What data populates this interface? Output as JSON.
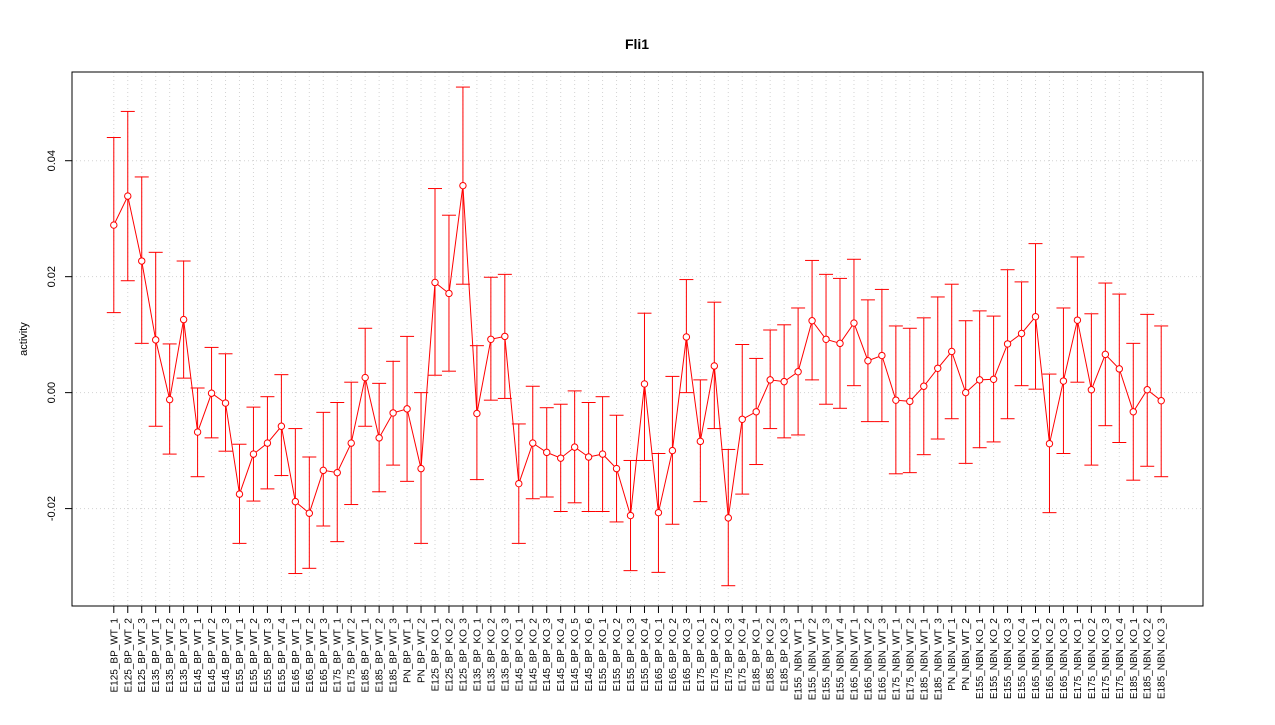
{
  "chart_data": {
    "type": "line",
    "title": "Fli1",
    "xlabel": "",
    "ylabel": "activity",
    "ylim": [
      -0.0368,
      0.0553
    ],
    "yticks": [
      -0.02,
      0.0,
      0.02,
      0.04
    ],
    "ytick_labels": [
      "-0.02",
      "0.00",
      "0.02",
      "0.04"
    ],
    "grid": true,
    "legend": "none",
    "color": "#ff0000",
    "categories": [
      "E125_BP_WT_1",
      "E125_BP_WT_2",
      "E125_BP_WT_3",
      "E135_BP_WT_1",
      "E135_BP_WT_2",
      "E135_BP_WT_3",
      "E145_BP_WT_1",
      "E145_BP_WT_2",
      "E145_BP_WT_3",
      "E155_BP_WT_1",
      "E155_BP_WT_2",
      "E155_BP_WT_3",
      "E155_BP_WT_4",
      "E165_BP_WT_1",
      "E165_BP_WT_2",
      "E165_BP_WT_3",
      "E175_BP_WT_1",
      "E175_BP_WT_2",
      "E185_BP_WT_1",
      "E185_BP_WT_2",
      "E185_BP_WT_3",
      "PN_BP_WT_1",
      "PN_BP_WT_2",
      "E125_BP_KO_1",
      "E125_BP_KO_2",
      "E125_BP_KO_3",
      "E135_BP_KO_1",
      "E135_BP_KO_2",
      "E135_BP_KO_3",
      "E145_BP_KO_1",
      "E145_BP_KO_2",
      "E145_BP_KO_3",
      "E145_BP_KO_4",
      "E145_BP_KO_5",
      "E145_BP_KO_6",
      "E155_BP_KO_1",
      "E155_BP_KO_2",
      "E155_BP_KO_3",
      "E155_BP_KO_4",
      "E165_BP_KO_1",
      "E165_BP_KO_2",
      "E165_BP_KO_3",
      "E175_BP_KO_1",
      "E175_BP_KO_2",
      "E175_BP_KO_3",
      "E175_BP_KO_4",
      "E185_BP_KO_1",
      "E185_BP_KO_2",
      "E185_BP_KO_3",
      "E155_NBN_WT_1",
      "E155_NBN_WT_2",
      "E155_NBN_WT_3",
      "E155_NBN_WT_4",
      "E165_NBN_WT_1",
      "E165_NBN_WT_2",
      "E165_NBN_WT_3",
      "E175_NBN_WT_1",
      "E175_NBN_WT_2",
      "E185_NBN_WT_1",
      "E185_NBN_WT_3",
      "PN_NBN_WT_1",
      "PN_NBN_WT_2",
      "E155_NBN_KO_1",
      "E155_NBN_KO_2",
      "E155_NBN_KO_3",
      "E155_NBN_KO_4",
      "E165_NBN_KO_1",
      "E165_NBN_KO_2",
      "E165_NBN_KO_3",
      "E175_NBN_KO_1",
      "E175_NBN_KO_2",
      "E175_NBN_KO_3",
      "E175_NBN_KO_4",
      "E185_NBN_KO_1",
      "E185_NBN_KO_2",
      "E185_NBN_KO_3"
    ],
    "series": [
      {
        "values": [
          0.0289,
          0.0339,
          0.0227,
          0.0091,
          -0.0012,
          0.0126,
          -0.0068,
          -0.0001,
          -0.0018,
          -0.0175,
          -0.0106,
          -0.0087,
          -0.0058,
          -0.0188,
          -0.0208,
          -0.0134,
          -0.0138,
          -0.0087,
          0.0026,
          -0.0078,
          -0.0035,
          -0.0028,
          -0.0131,
          0.019,
          0.0171,
          0.0357,
          -0.0036,
          0.0092,
          0.0097,
          -0.0157,
          -0.0087,
          -0.0103,
          -0.0113,
          -0.0094,
          -0.0111,
          -0.0106,
          -0.0131,
          -0.0212,
          0.0015,
          -0.0207,
          -0.01,
          0.0096,
          -0.0084,
          0.0046,
          -0.0216,
          -0.0046,
          -0.0033,
          0.0022,
          0.0019,
          0.0036,
          0.0124,
          0.0092,
          0.0085,
          0.012,
          0.0055,
          0.0064,
          -0.0013,
          -0.0015,
          0.0011,
          0.0042,
          0.0071,
          0.0,
          0.0022,
          0.0023,
          0.0084,
          0.0102,
          0.0131,
          -0.0088,
          0.002,
          0.0125,
          0.0005,
          0.0066,
          0.0041,
          -0.0033,
          0.0005,
          -0.0014
        ],
        "lower": [
          0.0138,
          0.0193,
          0.0085,
          -0.0058,
          -0.0106,
          0.0025,
          -0.0145,
          -0.0078,
          -0.0101,
          -0.026,
          -0.0187,
          -0.0166,
          -0.0143,
          -0.0312,
          -0.0303,
          -0.023,
          -0.0257,
          -0.0193,
          -0.0058,
          -0.0171,
          -0.0125,
          -0.0153,
          -0.026,
          0.003,
          0.0037,
          0.0187,
          -0.015,
          -0.0013,
          -0.001,
          -0.026,
          -0.0183,
          -0.018,
          -0.0205,
          -0.019,
          -0.0205,
          -0.0205,
          -0.0223,
          -0.0307,
          -0.0117,
          -0.031,
          -0.0227,
          0.0,
          -0.0188,
          -0.0062,
          -0.0333,
          -0.0175,
          -0.0124,
          -0.0062,
          -0.0078,
          -0.0073,
          0.0022,
          -0.002,
          -0.0027,
          0.0012,
          -0.005,
          -0.005,
          -0.014,
          -0.0138,
          -0.0107,
          -0.008,
          -0.0045,
          -0.0122,
          -0.0095,
          -0.0085,
          -0.0045,
          0.0012,
          0.0006,
          -0.0207,
          -0.0105,
          0.0018,
          -0.0125,
          -0.0057,
          -0.0086,
          -0.0151,
          -0.0127,
          -0.0145
        ],
        "upper": [
          0.044,
          0.0485,
          0.0372,
          0.0242,
          0.0084,
          0.0227,
          0.0008,
          0.0078,
          0.0067,
          -0.0089,
          -0.0025,
          -0.0007,
          0.0031,
          -0.0062,
          -0.0111,
          -0.0034,
          -0.0017,
          0.0018,
          0.0111,
          0.0016,
          0.0054,
          0.0097,
          0.0,
          0.0352,
          0.0306,
          0.0527,
          0.0081,
          0.0199,
          0.0204,
          -0.0054,
          0.0011,
          -0.0026,
          -0.002,
          0.0003,
          -0.0017,
          -0.0007,
          -0.0039,
          -0.0117,
          0.0137,
          -0.0105,
          0.0028,
          0.0195,
          0.0022,
          0.0156,
          -0.0098,
          0.0083,
          0.0059,
          0.0108,
          0.0117,
          0.0146,
          0.0228,
          0.0204,
          0.0197,
          0.023,
          0.016,
          0.0178,
          0.0115,
          0.0111,
          0.0129,
          0.0165,
          0.0187,
          0.0124,
          0.0141,
          0.0132,
          0.0212,
          0.0191,
          0.0257,
          0.0032,
          0.0146,
          0.0234,
          0.0136,
          0.0189,
          0.017,
          0.0085,
          0.0135,
          0.0115
        ]
      }
    ]
  }
}
